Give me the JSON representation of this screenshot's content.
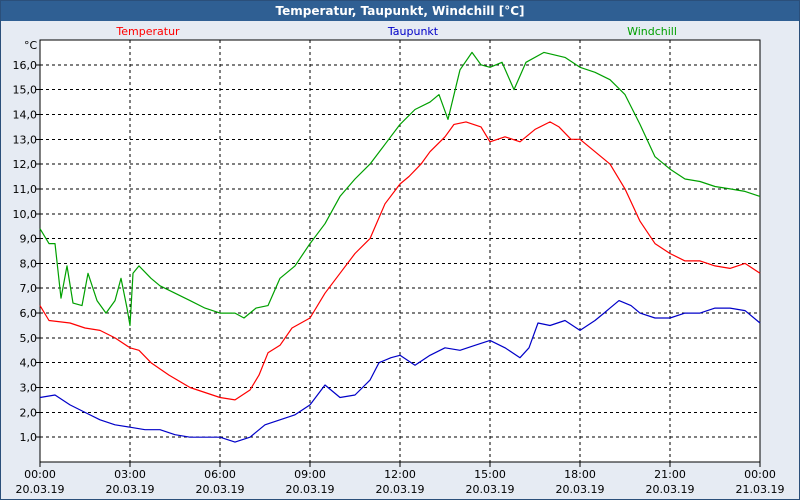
{
  "window": {
    "title": "Temperatur, Taupunkt, Windchill [°C]"
  },
  "chart_data": {
    "type": "line",
    "title": "Temperatur, Taupunkt, Windchill [°C]",
    "yunit": "°C",
    "ylim": [
      0,
      17
    ],
    "y_ticks": [
      "1,0",
      "2,0",
      "3,0",
      "4,0",
      "5,0",
      "6,0",
      "7,0",
      "8,0",
      "9,0",
      "10,0",
      "11,0",
      "12,0",
      "13,0",
      "14,0",
      "15,0",
      "16,0"
    ],
    "x_domain_hours": [
      0,
      24
    ],
    "x_ticks": [
      {
        "time": "00:00",
        "date": "20.03.19",
        "h": 0
      },
      {
        "time": "03:00",
        "date": "20.03.19",
        "h": 3
      },
      {
        "time": "06:00",
        "date": "20.03.19",
        "h": 6
      },
      {
        "time": "09:00",
        "date": "20.03.19",
        "h": 9
      },
      {
        "time": "12:00",
        "date": "20.03.19",
        "h": 12
      },
      {
        "time": "15:00",
        "date": "20.03.19",
        "h": 15
      },
      {
        "time": "18:00",
        "date": "20.03.19",
        "h": 18
      },
      {
        "time": "21:00",
        "date": "20.03.19",
        "h": 21
      },
      {
        "time": "00:00",
        "date": "21.03.19",
        "h": 24
      }
    ],
    "grid": true,
    "legend_position": "top",
    "series": [
      {
        "name": "Temperatur",
        "color": "#ff0000",
        "points": [
          [
            0,
            6.3
          ],
          [
            0.3,
            5.7
          ],
          [
            1.0,
            5.6
          ],
          [
            1.5,
            5.4
          ],
          [
            2.0,
            5.3
          ],
          [
            2.5,
            5.0
          ],
          [
            3.0,
            4.6
          ],
          [
            3.3,
            4.5
          ],
          [
            3.7,
            4.0
          ],
          [
            4.3,
            3.5
          ],
          [
            5.0,
            3.0
          ],
          [
            5.5,
            2.8
          ],
          [
            6.0,
            2.6
          ],
          [
            6.5,
            2.5
          ],
          [
            7.0,
            2.9
          ],
          [
            7.3,
            3.5
          ],
          [
            7.6,
            4.4
          ],
          [
            8.0,
            4.7
          ],
          [
            8.4,
            5.4
          ],
          [
            9.0,
            5.8
          ],
          [
            9.5,
            6.8
          ],
          [
            10.0,
            7.6
          ],
          [
            10.5,
            8.4
          ],
          [
            11.0,
            9.0
          ],
          [
            11.5,
            10.4
          ],
          [
            12.0,
            11.2
          ],
          [
            12.3,
            11.5
          ],
          [
            12.7,
            12.0
          ],
          [
            13.0,
            12.5
          ],
          [
            13.5,
            13.1
          ],
          [
            13.8,
            13.6
          ],
          [
            14.2,
            13.7
          ],
          [
            14.7,
            13.5
          ],
          [
            15.0,
            12.9
          ],
          [
            15.5,
            13.1
          ],
          [
            16.0,
            12.9
          ],
          [
            16.5,
            13.4
          ],
          [
            17.0,
            13.7
          ],
          [
            17.3,
            13.5
          ],
          [
            17.7,
            13.0
          ],
          [
            18.0,
            13.0
          ],
          [
            18.5,
            12.5
          ],
          [
            19.0,
            12.0
          ],
          [
            19.5,
            11.0
          ],
          [
            20.0,
            9.7
          ],
          [
            20.5,
            8.8
          ],
          [
            21.0,
            8.4
          ],
          [
            21.5,
            8.1
          ],
          [
            22.0,
            8.1
          ],
          [
            22.5,
            7.9
          ],
          [
            23.0,
            7.8
          ],
          [
            23.5,
            8.0
          ],
          [
            24.0,
            7.6
          ]
        ]
      },
      {
        "name": "Taupunkt",
        "color": "#0000c8",
        "points": [
          [
            0,
            2.6
          ],
          [
            0.5,
            2.7
          ],
          [
            1.0,
            2.3
          ],
          [
            1.5,
            2.0
          ],
          [
            2.0,
            1.7
          ],
          [
            2.5,
            1.5
          ],
          [
            3.0,
            1.4
          ],
          [
            3.5,
            1.3
          ],
          [
            4.0,
            1.3
          ],
          [
            4.5,
            1.1
          ],
          [
            5.0,
            1.0
          ],
          [
            5.5,
            1.0
          ],
          [
            6.0,
            1.0
          ],
          [
            6.5,
            0.8
          ],
          [
            7.0,
            1.0
          ],
          [
            7.5,
            1.5
          ],
          [
            8.0,
            1.7
          ],
          [
            8.5,
            1.9
          ],
          [
            9.0,
            2.3
          ],
          [
            9.5,
            3.1
          ],
          [
            10.0,
            2.6
          ],
          [
            10.5,
            2.7
          ],
          [
            11.0,
            3.3
          ],
          [
            11.3,
            4.0
          ],
          [
            11.7,
            4.2
          ],
          [
            12.0,
            4.3
          ],
          [
            12.5,
            3.9
          ],
          [
            13.0,
            4.3
          ],
          [
            13.5,
            4.6
          ],
          [
            14.0,
            4.5
          ],
          [
            14.5,
            4.7
          ],
          [
            15.0,
            4.9
          ],
          [
            15.5,
            4.6
          ],
          [
            16.0,
            4.2
          ],
          [
            16.3,
            4.6
          ],
          [
            16.6,
            5.6
          ],
          [
            17.0,
            5.5
          ],
          [
            17.5,
            5.7
          ],
          [
            18.0,
            5.3
          ],
          [
            18.5,
            5.7
          ],
          [
            18.8,
            6.0
          ],
          [
            19.0,
            6.2
          ],
          [
            19.3,
            6.5
          ],
          [
            19.7,
            6.3
          ],
          [
            20.0,
            6.0
          ],
          [
            20.5,
            5.8
          ],
          [
            21.0,
            5.8
          ],
          [
            21.5,
            6.0
          ],
          [
            22.0,
            6.0
          ],
          [
            22.5,
            6.2
          ],
          [
            23.0,
            6.2
          ],
          [
            23.5,
            6.1
          ],
          [
            24.0,
            5.6
          ]
        ]
      },
      {
        "name": "Windchill",
        "color": "#00a000",
        "points": [
          [
            0,
            9.4
          ],
          [
            0.3,
            8.8
          ],
          [
            0.5,
            8.8
          ],
          [
            0.7,
            6.6
          ],
          [
            0.9,
            7.9
          ],
          [
            1.1,
            6.4
          ],
          [
            1.4,
            6.3
          ],
          [
            1.6,
            7.6
          ],
          [
            1.9,
            6.5
          ],
          [
            2.2,
            6.0
          ],
          [
            2.5,
            6.5
          ],
          [
            2.7,
            7.4
          ],
          [
            2.9,
            6.2
          ],
          [
            3.0,
            5.5
          ],
          [
            3.1,
            7.6
          ],
          [
            3.3,
            7.9
          ],
          [
            3.7,
            7.4
          ],
          [
            4.0,
            7.1
          ],
          [
            4.5,
            6.8
          ],
          [
            5.0,
            6.5
          ],
          [
            5.5,
            6.2
          ],
          [
            6.0,
            6.0
          ],
          [
            6.5,
            6.0
          ],
          [
            6.8,
            5.8
          ],
          [
            7.2,
            6.2
          ],
          [
            7.6,
            6.3
          ],
          [
            8.0,
            7.4
          ],
          [
            8.5,
            7.9
          ],
          [
            9.0,
            8.8
          ],
          [
            9.5,
            9.6
          ],
          [
            10.0,
            10.7
          ],
          [
            10.5,
            11.4
          ],
          [
            11.0,
            12.0
          ],
          [
            11.5,
            12.8
          ],
          [
            12.0,
            13.6
          ],
          [
            12.5,
            14.2
          ],
          [
            13.0,
            14.5
          ],
          [
            13.3,
            14.8
          ],
          [
            13.6,
            13.8
          ],
          [
            14.0,
            15.8
          ],
          [
            14.4,
            16.5
          ],
          [
            14.7,
            16.0
          ],
          [
            15.0,
            15.9
          ],
          [
            15.4,
            16.1
          ],
          [
            15.8,
            15.0
          ],
          [
            16.2,
            16.1
          ],
          [
            16.8,
            16.5
          ],
          [
            17.5,
            16.3
          ],
          [
            18.0,
            15.9
          ],
          [
            18.5,
            15.7
          ],
          [
            19.0,
            15.4
          ],
          [
            19.5,
            14.8
          ],
          [
            20.0,
            13.6
          ],
          [
            20.5,
            12.3
          ],
          [
            21.0,
            11.8
          ],
          [
            21.5,
            11.4
          ],
          [
            22.0,
            11.3
          ],
          [
            22.5,
            11.1
          ],
          [
            23.0,
            11.0
          ],
          [
            23.5,
            10.9
          ],
          [
            24.0,
            10.7
          ]
        ]
      }
    ]
  }
}
